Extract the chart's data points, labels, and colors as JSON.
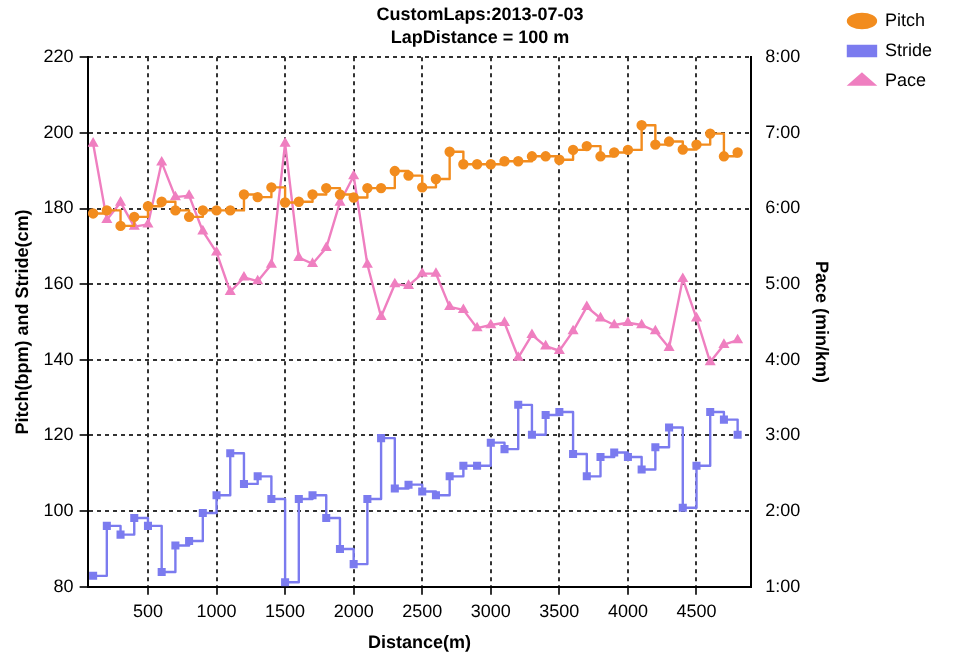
{
  "chart_data": {
    "type": "line",
    "title": "CustomLaps:2013-07-03",
    "subtitle": "LapDistance = 100 m",
    "xlabel": "Distance(m)",
    "ylabel": "Pitch(bpm) and Stride(cm)",
    "y2label": "Pace (min/km)",
    "x": [
      100,
      200,
      300,
      400,
      500,
      600,
      700,
      800,
      900,
      1000,
      1100,
      1200,
      1300,
      1400,
      1500,
      1600,
      1700,
      1800,
      1900,
      2000,
      2100,
      2200,
      2300,
      2400,
      2500,
      2600,
      2700,
      2800,
      2900,
      3000,
      3100,
      3200,
      3300,
      3400,
      3500,
      3600,
      3700,
      3800,
      3900,
      4000,
      4100,
      4200,
      4300,
      4400,
      4500,
      4600,
      4700,
      4800
    ],
    "series": [
      {
        "name": "Pitch",
        "type": "step",
        "marker": "circle",
        "color": "#f28c1e",
        "values": [
          178.7,
          179.5,
          175.4,
          177.8,
          180.6,
          181.8,
          179.5,
          177.8,
          179.5,
          179.5,
          179.5,
          183.7,
          183,
          185.6,
          181.6,
          181.8,
          183.7,
          185.4,
          183.7,
          182.9,
          185.4,
          185.4,
          189.9,
          188.7,
          185.6,
          187.8,
          195,
          191.7,
          191.7,
          191.7,
          192.5,
          192.5,
          193.8,
          193.8,
          192.9,
          195.5,
          196.5,
          193.8,
          194.8,
          195.5,
          202,
          196.9,
          197.7,
          195.6,
          196.9,
          199.8,
          193.8,
          194.8
        ]
      },
      {
        "name": "Stride",
        "type": "step",
        "marker": "square",
        "color": "#7b7bef",
        "values": [
          82.9,
          96.1,
          93.8,
          98.2,
          96.1,
          83.9,
          90.9,
          92.1,
          99.5,
          104.2,
          115.3,
          107.2,
          109.2,
          103.2,
          81.2,
          103.2,
          104.2,
          98.2,
          90,
          86,
          103.2,
          119.3,
          106,
          107,
          105.2,
          104.2,
          109.2,
          112,
          112,
          118.1,
          116.4,
          128.1,
          120.2,
          125.4,
          126.2,
          115.1,
          109.2,
          114.3,
          115.5,
          114.3,
          111,
          116.9,
          122.1,
          100.9,
          112,
          126.2,
          124.2,
          120.2
        ]
      },
      {
        "name": "Pace",
        "marker": "triangle",
        "axis": "y2",
        "color": "#ef7fc0",
        "values": [
          6.86,
          5.85,
          6.08,
          5.76,
          5.79,
          6.61,
          6.15,
          6.17,
          5.7,
          5.42,
          4.9,
          5.09,
          5.04,
          5.26,
          6.86,
          5.35,
          5.27,
          5.48,
          6.08,
          6.43,
          5.26,
          4.57,
          5,
          4.98,
          5.14,
          5.14,
          4.7,
          4.66,
          4.42,
          4.46,
          4.49,
          4.03,
          4.33,
          4.18,
          4.12,
          4.38,
          4.7,
          4.55,
          4.46,
          4.49,
          4.46,
          4.38,
          4.16,
          5.07,
          4.55,
          3.97,
          4.2,
          4.26
        ]
      }
    ],
    "xlim": [
      60,
      4900
    ],
    "xticks": [
      500,
      1000,
      1500,
      2000,
      2500,
      3000,
      3500,
      4000,
      4500
    ],
    "ylim": [
      80,
      220
    ],
    "yticks": [
      80,
      100,
      120,
      140,
      160,
      180,
      200,
      220
    ],
    "y2lim": [
      1,
      8
    ],
    "y2ticks": [
      {
        "value": 1,
        "label": "1:00"
      },
      {
        "value": 2,
        "label": "2:00"
      },
      {
        "value": 3,
        "label": "3:00"
      },
      {
        "value": 4,
        "label": "4:00"
      },
      {
        "value": 5,
        "label": "5:00"
      },
      {
        "value": 6,
        "label": "6:00"
      },
      {
        "value": 7,
        "label": "7:00"
      },
      {
        "value": 8,
        "label": "8:00"
      }
    ],
    "grid": true,
    "legend": "top right"
  }
}
